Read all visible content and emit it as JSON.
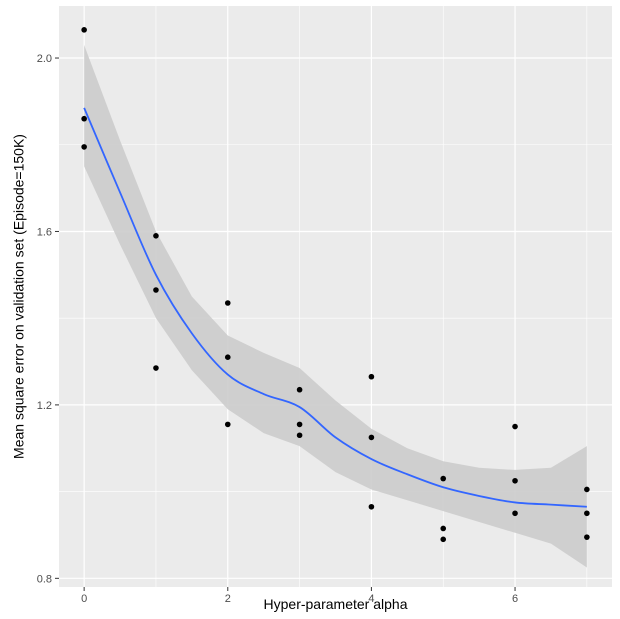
{
  "chart_data": {
    "type": "scatter",
    "xlabel": "Hyper-parameter alpha",
    "ylabel": "Mean square error on validation set (Episode=150K)",
    "xlim": [
      -0.35,
      7.35
    ],
    "ylim": [
      0.78,
      2.12
    ],
    "x_ticks": [
      0,
      2,
      4,
      6
    ],
    "x_tick_labels": [
      "0",
      "2",
      "4",
      "6"
    ],
    "y_ticks": [
      0.8,
      1.2,
      1.6,
      2.0
    ],
    "y_tick_labels": [
      "0.8",
      "1.2",
      "1.6",
      "2.0"
    ],
    "grid": true,
    "legend": "none",
    "points": [
      {
        "x": 0,
        "y": 2.065
      },
      {
        "x": 0,
        "y": 1.86
      },
      {
        "x": 0,
        "y": 1.795
      },
      {
        "x": 1,
        "y": 1.59
      },
      {
        "x": 1,
        "y": 1.465
      },
      {
        "x": 1,
        "y": 1.285
      },
      {
        "x": 2,
        "y": 1.435
      },
      {
        "x": 2,
        "y": 1.31
      },
      {
        "x": 2,
        "y": 1.155
      },
      {
        "x": 3,
        "y": 1.235
      },
      {
        "x": 3,
        "y": 1.155
      },
      {
        "x": 3,
        "y": 1.13
      },
      {
        "x": 4,
        "y": 1.265
      },
      {
        "x": 4,
        "y": 1.125
      },
      {
        "x": 4,
        "y": 0.965
      },
      {
        "x": 5,
        "y": 1.03
      },
      {
        "x": 5,
        "y": 0.915
      },
      {
        "x": 5,
        "y": 0.89
      },
      {
        "x": 6,
        "y": 1.15
      },
      {
        "x": 6,
        "y": 1.025
      },
      {
        "x": 6,
        "y": 0.95
      },
      {
        "x": 7,
        "y": 1.005
      },
      {
        "x": 7,
        "y": 0.95
      },
      {
        "x": 7,
        "y": 0.895
      }
    ],
    "smooth_line": {
      "x": [
        0,
        0.5,
        1,
        1.5,
        2,
        2.5,
        3,
        3.5,
        4,
        4.5,
        5,
        5.5,
        6,
        6.5,
        7
      ],
      "y": [
        1.885,
        1.69,
        1.5,
        1.365,
        1.27,
        1.225,
        1.195,
        1.125,
        1.075,
        1.04,
        1.01,
        0.99,
        0.975,
        0.97,
        0.965
      ]
    },
    "confidence_band": {
      "x": [
        0,
        0.5,
        1,
        1.5,
        2,
        2.5,
        3,
        3.5,
        4,
        4.5,
        5,
        5.5,
        6,
        6.5,
        7
      ],
      "upper": [
        2.03,
        1.81,
        1.6,
        1.45,
        1.36,
        1.32,
        1.285,
        1.21,
        1.145,
        1.1,
        1.07,
        1.055,
        1.05,
        1.055,
        1.105
      ],
      "lower": [
        1.75,
        1.57,
        1.4,
        1.28,
        1.19,
        1.135,
        1.105,
        1.045,
        1.005,
        0.98,
        0.955,
        0.93,
        0.905,
        0.88,
        0.825
      ]
    },
    "colors": {
      "panel_background": "#ebebeb",
      "grid": "#ffffff",
      "points": "#000000",
      "smooth_line": "#3366ff",
      "band": "#cccccc"
    }
  }
}
